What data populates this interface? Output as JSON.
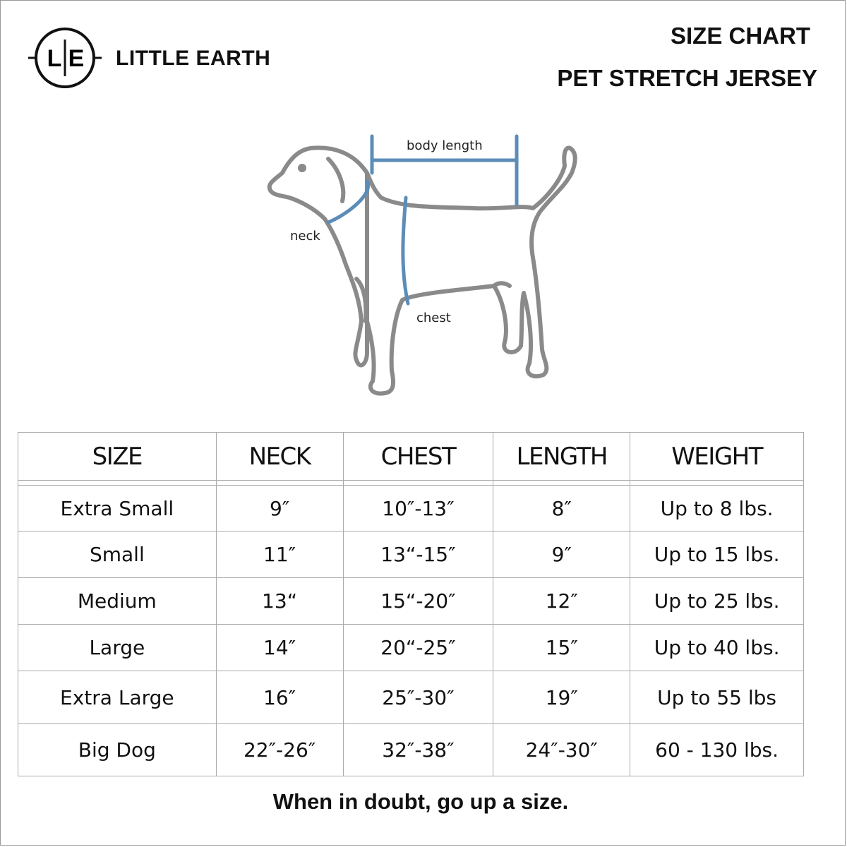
{
  "brand": {
    "logo_letters": "L|E",
    "name": "LITTLE EARTH"
  },
  "header": {
    "title": "SIZE CHART",
    "subtitle": "PET STRETCH JERSEY"
  },
  "diagram": {
    "labels": {
      "body_length": "body length",
      "neck": "neck",
      "chest": "chest"
    },
    "colors": {
      "outline": "#8a8a8a",
      "measure": "#5b8db8"
    }
  },
  "table": {
    "columns": [
      "SIZE",
      "NECK",
      "CHEST",
      "LENGTH",
      "WEIGHT"
    ],
    "rows": [
      [
        "Extra Small",
        "9″",
        "10″-13″",
        "8″",
        "Up to 8 lbs."
      ],
      [
        "Small",
        "11″",
        "13“-15″",
        "9″",
        "Up to 15 lbs."
      ],
      [
        "Medium",
        "13“",
        "15“-20″",
        "12″",
        "Up to 25 lbs."
      ],
      [
        "Large",
        "14″",
        "20“-25″",
        "15″",
        "Up to 40 lbs."
      ],
      [
        "Extra Large",
        "16″",
        "25″-30″",
        "19″",
        "Up to 55 lbs"
      ],
      [
        "Big Dog",
        "22″-26″",
        "32″-38″",
        "24″-30″",
        "60 - 130 lbs."
      ]
    ]
  },
  "footer": {
    "note": "When in doubt, go up a size."
  }
}
